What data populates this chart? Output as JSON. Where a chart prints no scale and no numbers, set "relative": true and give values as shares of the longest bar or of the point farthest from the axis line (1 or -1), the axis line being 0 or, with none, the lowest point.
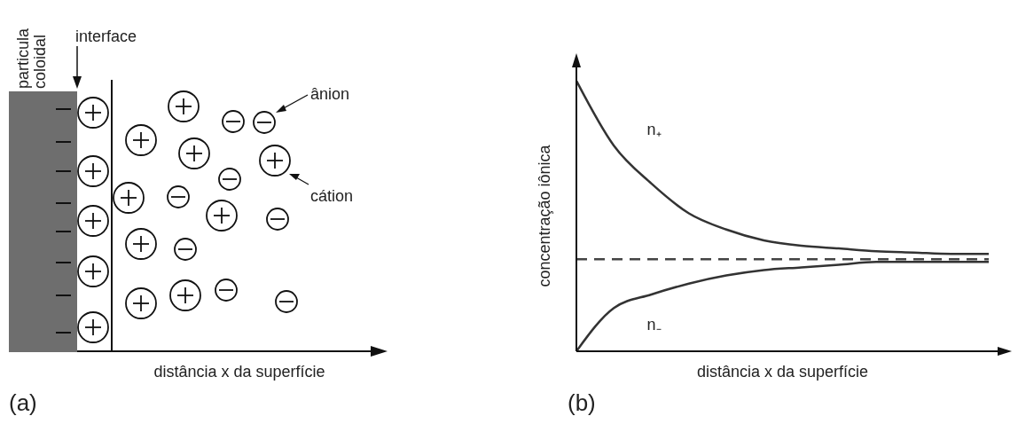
{
  "chart_data": [
    {
      "type": "other",
      "xlabel": "distância x da superfície",
      "annotations": [
        "particula coloidal",
        "interface",
        "ânion",
        "cátion",
        "(a)"
      ]
    },
    {
      "type": "line",
      "relative": true,
      "xlabel": "distância x da superfície",
      "ylabel": "concentração iônica",
      "categories": [
        null,
        null,
        null,
        null,
        null,
        null,
        null,
        null,
        null,
        null,
        null,
        null
      ],
      "series": [
        {
          "name": "n₊",
          "color": "#333333",
          "values": [
            1,
            0.76,
            0.62,
            0.51,
            0.45,
            0.41,
            0.39,
            0.38,
            0.37,
            0.365,
            0.36,
            0.36
          ]
        },
        {
          "name": "n₋",
          "color": "#333333",
          "values": [
            0,
            0.16,
            0.21,
            0.25,
            0.28,
            0.3,
            0.31,
            0.32,
            0.33,
            0.33,
            0.33,
            0.33
          ]
        }
      ],
      "ref_lines": [
        {
          "axis": "y",
          "value": 0.34,
          "line_style": "dashed",
          "color": "#444444"
        }
      ],
      "annotations": [
        "(b)"
      ]
    }
  ]
}
